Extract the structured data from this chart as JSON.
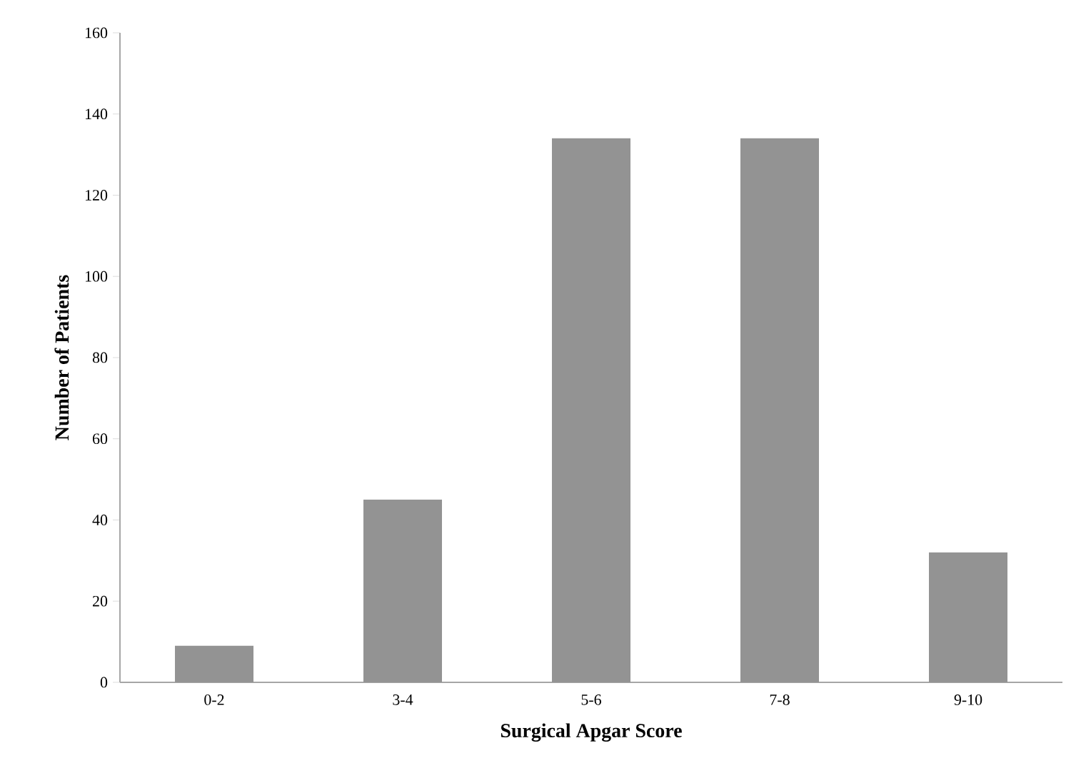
{
  "chart_data": {
    "type": "bar",
    "xlabel": "Surgical Apgar Score",
    "ylabel": "Number of Patients",
    "categories": [
      "0-2",
      "3-4",
      "5-6",
      "7-8",
      "9-10"
    ],
    "values": [
      9,
      45,
      134,
      134,
      32
    ],
    "color": "#939393",
    "ylim": [
      0,
      160
    ],
    "yticks": [
      0,
      20,
      40,
      60,
      80,
      100,
      120,
      140,
      160
    ]
  }
}
